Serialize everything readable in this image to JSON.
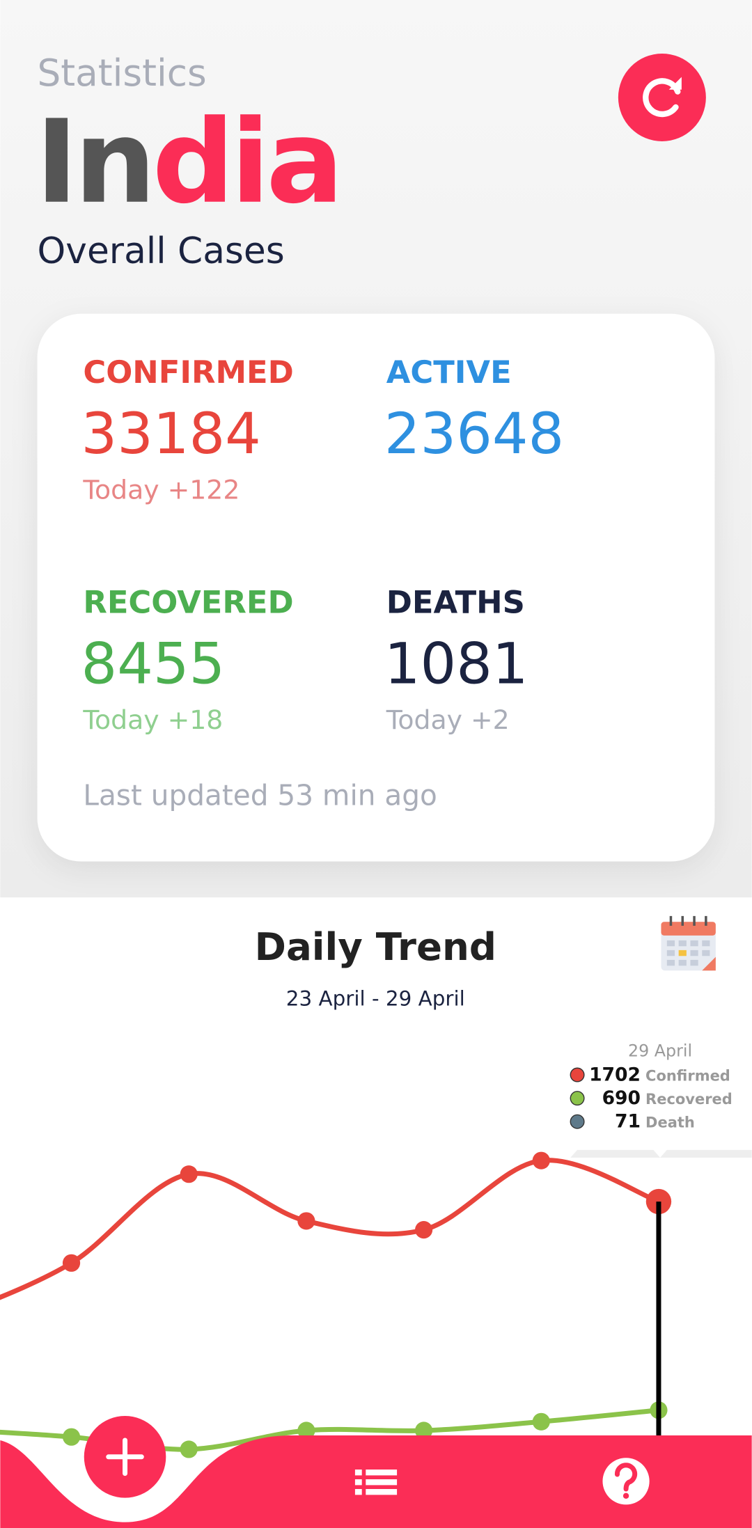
{
  "header": {
    "subtitle": "Statistics",
    "title_a": "In",
    "title_b": "dia",
    "heading": "Overall Cases"
  },
  "stats": [
    {
      "label": "CONFIRMED",
      "value": 33184,
      "today": "Today +122"
    },
    {
      "label": "ACTIVE",
      "value": 23648
    },
    {
      "label": "RECOVERED",
      "value": 8455,
      "today": "Today +18"
    },
    {
      "label": "DEATHS",
      "value": 1081,
      "today": "Today +2"
    }
  ],
  "updated": "Last updated 53 min ago",
  "trend": {
    "title": "Daily Trend",
    "range": "23 April - 29 April",
    "tooltip": {
      "date": "29 April",
      "items": [
        {
          "value": 1702,
          "label": "Confirmed",
          "color": "#e8453c"
        },
        {
          "value": 690,
          "label": "Recovered",
          "color": "#8bc34a"
        },
        {
          "value": 71,
          "label": "Death",
          "color": "#5f7a8a"
        }
      ]
    },
    "series": [
      {
        "color": "#e8453c",
        "values": [
          1404,
          1835,
          1608,
          1565,
          1901,
          1702
        ]
      },
      {
        "color": "#8bc34a",
        "values": [
          560,
          500,
          591,
          591,
          634,
          690
        ]
      }
    ]
  }
}
